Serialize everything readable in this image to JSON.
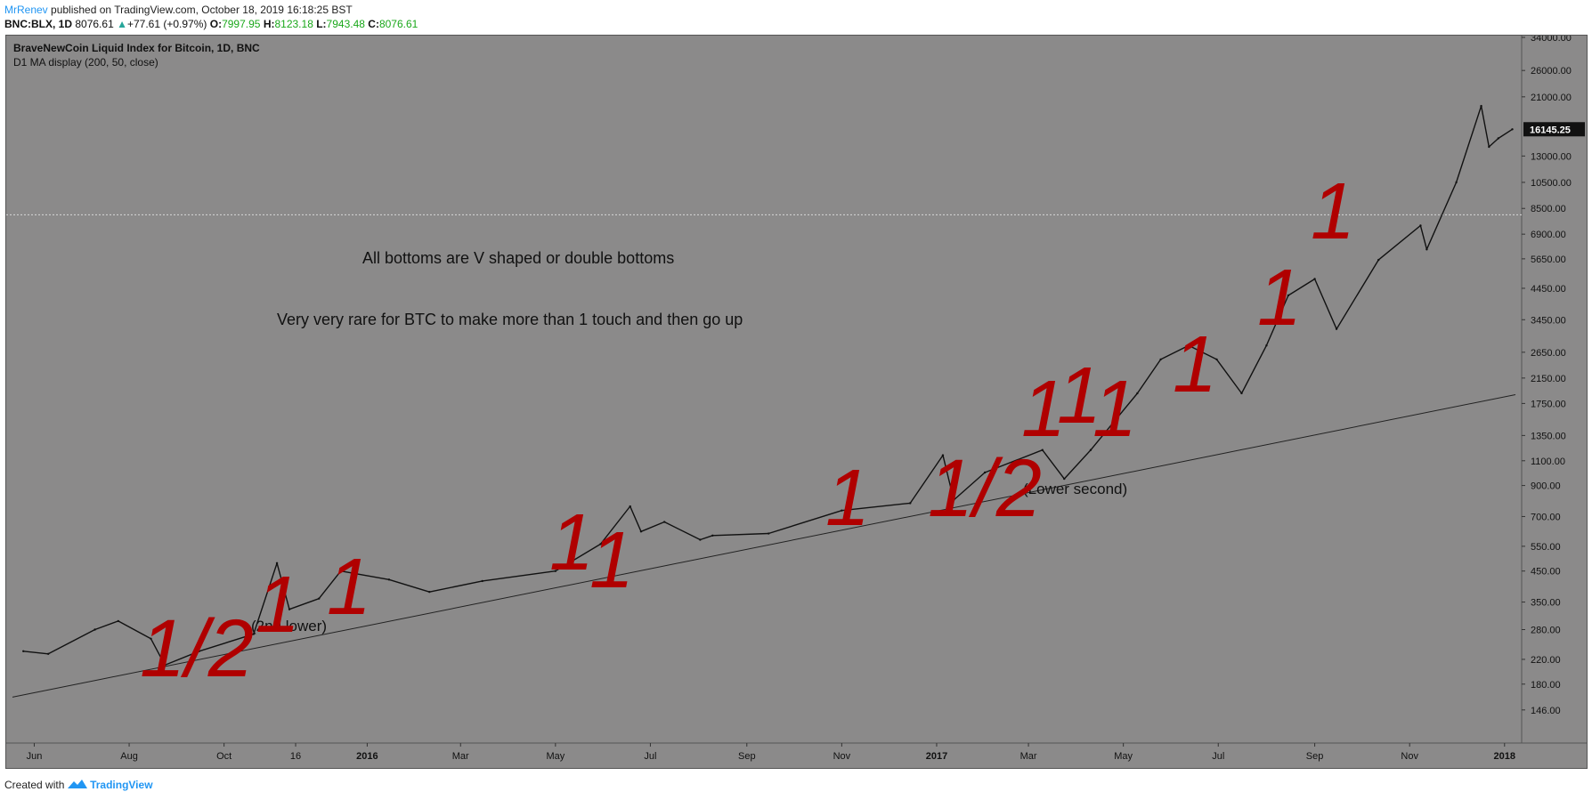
{
  "header": {
    "author": "MrRenev",
    "published": "published on TradingView.com, October 18, 2019 16:18:25 BST",
    "symbol": "BNC:BLX, 1D",
    "last": "8076.61",
    "change": "+77.61 (+0.97%)",
    "o_label": "O:",
    "o_value": "7997.95",
    "h_label": "H:",
    "h_value": "8123.18",
    "l_label": "L:",
    "l_value": "7943.48",
    "c_label": "C:",
    "c_value": "8076.61"
  },
  "legend": {
    "title": "BraveNewCoin Liquid Index for Bitcoin, 1D, BNC",
    "indicator": "D1 MA display (200, 50, close)"
  },
  "annotations": {
    "line1": "All bottoms are V shaped or double bottoms",
    "line2": "Very very rare for BTC to make more than 1 touch and then go up",
    "lower_second": "(Lower second)",
    "second_lower": "(2nd lower)",
    "marks": [
      "1/2",
      "1",
      "1",
      "1",
      "1",
      "1",
      "1/2",
      "1",
      "1",
      "1",
      "1",
      "1",
      "1"
    ]
  },
  "footer": {
    "created": "Created with",
    "brand": "TradingView"
  },
  "colors": {
    "panel_bg": "#8b8a8a",
    "candles": "#111111",
    "annotation": "#b00000",
    "price_label_bg": "#111111"
  },
  "chart_data": {
    "type": "line",
    "title": "BraveNewCoin Liquid Index for Bitcoin, 1D, BNC",
    "y_scale": "log",
    "ylim": [
      120,
      34000
    ],
    "y_ticks": [
      "34000.00",
      "26000.00",
      "21000.00",
      "13000.00",
      "10500.00",
      "8500.00",
      "6900.00",
      "5650.00",
      "4450.00",
      "3450.00",
      "2650.00",
      "2150.00",
      "1750.00",
      "1350.00",
      "1100.00",
      "900.00",
      "700.00",
      "550.00",
      "450.00",
      "350.00",
      "280.00",
      "220.00",
      "180.00",
      "146.00"
    ],
    "x_ticks": [
      "Jun",
      "Aug",
      "Oct",
      "16",
      "2016",
      "Mar",
      "May",
      "Jul",
      "Sep",
      "Nov",
      "2017",
      "Mar",
      "May",
      "Jul",
      "Sep",
      "Nov",
      "2018"
    ],
    "x": [
      "2015-05-25",
      "2015-06-10",
      "2015-07-10",
      "2015-07-25",
      "2015-08-15",
      "2015-08-24",
      "2015-09-15",
      "2015-10-20",
      "2015-11-04",
      "2015-11-12",
      "2015-12-01",
      "2015-12-15",
      "2016-01-15",
      "2016-02-10",
      "2016-03-15",
      "2016-05-01",
      "2016-05-30",
      "2016-06-18",
      "2016-06-25",
      "2016-07-10",
      "2016-08-02",
      "2016-08-10",
      "2016-09-15",
      "2016-11-01",
      "2016-12-15",
      "2017-01-05",
      "2017-01-12",
      "2017-02-01",
      "2017-03-10",
      "2017-03-24",
      "2017-04-10",
      "2017-05-10",
      "2017-05-25",
      "2017-06-12",
      "2017-06-30",
      "2017-07-16",
      "2017-08-01",
      "2017-08-15",
      "2017-09-01",
      "2017-09-15",
      "2017-10-12",
      "2017-11-08",
      "2017-11-12",
      "2017-12-01",
      "2017-12-17",
      "2017-12-22",
      "2017-12-28",
      "2018-01-06"
    ],
    "series": [
      {
        "values": [
          235,
          230,
          280,
          300,
          260,
          210,
          235,
          270,
          480,
          330,
          360,
          450,
          420,
          380,
          415,
          450,
          560,
          760,
          620,
          670,
          580,
          600,
          610,
          735,
          780,
          1150,
          800,
          1000,
          1200,
          950,
          1200,
          1900,
          2500,
          2800,
          2500,
          1900,
          2800,
          4200,
          4800,
          3200,
          5600,
          7400,
          6100,
          10500,
          19500,
          14000,
          15000,
          16145
        ]
      }
    ],
    "current_price": "16145.25",
    "horizontal_line": 8076.61,
    "trend_line": {
      "from": [
        "2015-05-18",
        162
      ],
      "to": [
        "2018-01-08",
        1880
      ]
    }
  }
}
